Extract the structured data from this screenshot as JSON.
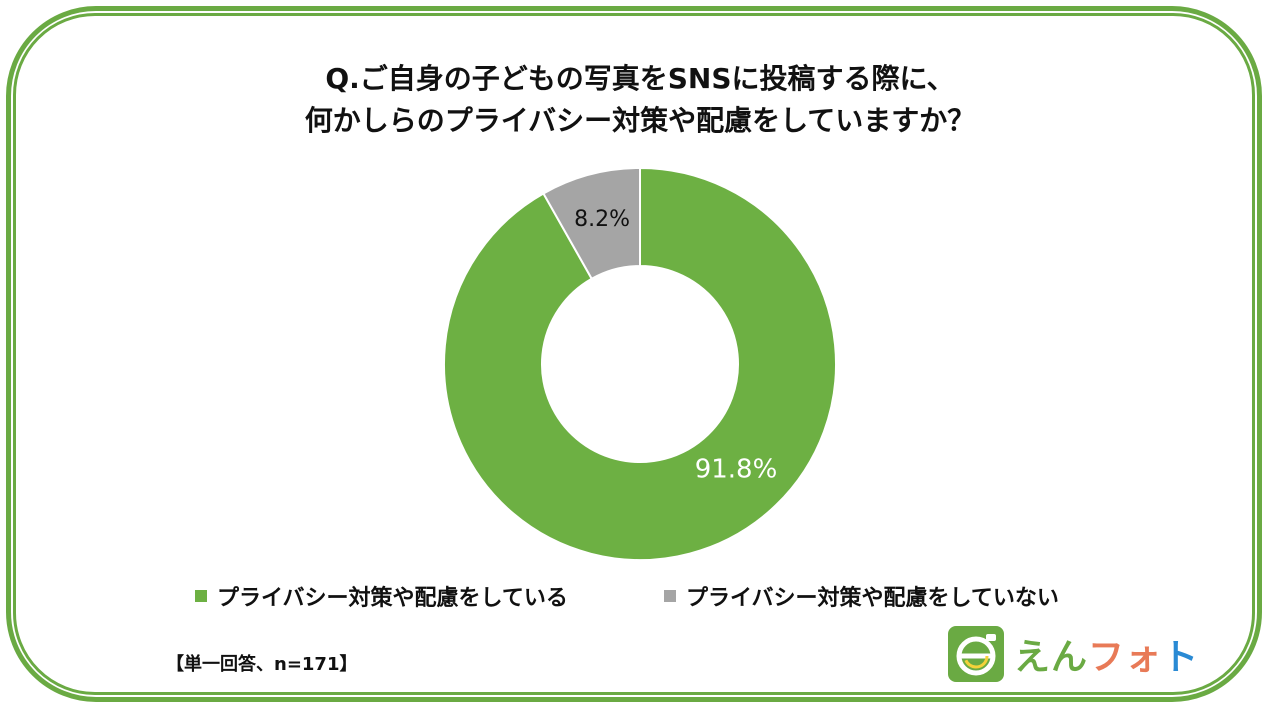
{
  "title_lines": [
    "Q.ご自身の子どもの写真をSNSに投稿する際に、",
    "何かしらのプライバシー対策や配慮をしていますか？"
  ],
  "chart_data": {
    "type": "pie",
    "donut": true,
    "slices": [
      {
        "label": "プライバシー対策や配慮をしている",
        "value": 91.8,
        "value_label": "91.8%",
        "color": "#6db043"
      },
      {
        "label": "プライバシー対策や配慮をしていない",
        "value": 8.2,
        "value_label": "8.2%",
        "color": "#a5a5a5"
      }
    ],
    "legend_placement": "bottom"
  },
  "legend": [
    {
      "label": "プライバシー対策や配慮をしている",
      "color": "#6db043"
    },
    {
      "label": "プライバシー対策や配慮をしていない",
      "color": "#a5a5a5"
    }
  ],
  "note": "【単一回答、n=171】",
  "logo": {
    "icon": "e-logo-icon",
    "text_chars": [
      {
        "char": "え",
        "color": "#6aaa43"
      },
      {
        "char": "ん",
        "color": "#6aaa43"
      },
      {
        "char": "フ",
        "color": "#e87a57"
      },
      {
        "char": "ォ",
        "color": "#e87a57"
      },
      {
        "char": "ト",
        "color": "#2a8ad4"
      }
    ]
  },
  "colors": {
    "frame": "#6aaa43",
    "slice_yes": "#6db043",
    "slice_no": "#a5a5a5"
  }
}
